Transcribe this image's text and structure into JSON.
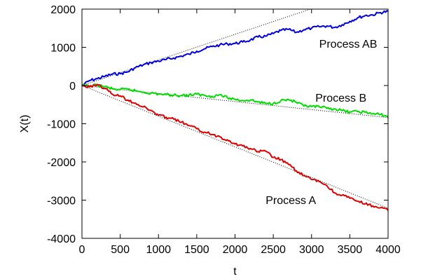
{
  "chart_data": {
    "type": "line",
    "title": "",
    "xlabel": "t",
    "ylabel": "X(t)",
    "xlim": [
      0,
      4000
    ],
    "ylim": [
      -4000,
      2000
    ],
    "xticks": [
      0,
      500,
      1000,
      1500,
      2000,
      2500,
      3000,
      3500,
      4000
    ],
    "yticks": [
      -4000,
      -3000,
      -2000,
      -1000,
      0,
      1000,
      2000
    ],
    "grid": false,
    "legend": "none",
    "series": [
      {
        "color": "#0000dd",
        "x": [
          0,
          100,
          200,
          300,
          400,
          500,
          600,
          700,
          800,
          900,
          1000,
          1100,
          1200,
          1300,
          1400,
          1500,
          1600,
          1700,
          1800,
          1900,
          2000,
          2100,
          2200,
          2300,
          2400,
          2500,
          2600,
          2700,
          2800,
          2900,
          3000,
          3100,
          3200,
          3300,
          3400,
          3500,
          3600,
          3700,
          3800,
          3900,
          4000
        ],
        "y": [
          0,
          130,
          180,
          240,
          300,
          310,
          360,
          470,
          540,
          600,
          640,
          680,
          720,
          770,
          820,
          900,
          960,
          1020,
          1060,
          1090,
          1100,
          1140,
          1190,
          1270,
          1290,
          1360,
          1440,
          1470,
          1390,
          1460,
          1500,
          1540,
          1560,
          1520,
          1590,
          1680,
          1770,
          1830,
          1850,
          1910,
          1940
        ]
      },
      {
        "color": "#00dd00",
        "x": [
          0,
          100,
          200,
          300,
          400,
          500,
          600,
          700,
          800,
          900,
          1000,
          1100,
          1200,
          1300,
          1400,
          1500,
          1600,
          1700,
          1800,
          1900,
          2000,
          2100,
          2200,
          2300,
          2400,
          2500,
          2600,
          2700,
          2800,
          2900,
          3000,
          3100,
          3200,
          3300,
          3400,
          3500,
          3600,
          3700,
          3800,
          3900,
          4000
        ],
        "y": [
          0,
          -20,
          10,
          -30,
          -90,
          -110,
          -100,
          -140,
          -170,
          -200,
          -220,
          -240,
          -250,
          -260,
          -250,
          -230,
          -260,
          -280,
          -240,
          -320,
          -360,
          -390,
          -380,
          -430,
          -470,
          -470,
          -390,
          -370,
          -440,
          -540,
          -550,
          -560,
          -600,
          -610,
          -660,
          -690,
          -680,
          -700,
          -740,
          -760,
          -810
        ]
      },
      {
        "color": "#dd0000",
        "x": [
          0,
          100,
          200,
          300,
          400,
          500,
          600,
          700,
          800,
          900,
          1000,
          1100,
          1200,
          1300,
          1400,
          1500,
          1600,
          1700,
          1800,
          1900,
          2000,
          2100,
          2200,
          2300,
          2400,
          2500,
          2600,
          2700,
          2800,
          2900,
          3000,
          3100,
          3200,
          3300,
          3400,
          3500,
          3600,
          3700,
          3800,
          3900,
          4000
        ],
        "y": [
          0,
          -40,
          30,
          -80,
          -230,
          -270,
          -380,
          -460,
          -560,
          -650,
          -780,
          -830,
          -880,
          -960,
          -1050,
          -1130,
          -1220,
          -1280,
          -1340,
          -1420,
          -1530,
          -1580,
          -1650,
          -1730,
          -1720,
          -1880,
          -1940,
          -2070,
          -2230,
          -2360,
          -2460,
          -2510,
          -2620,
          -2810,
          -2870,
          -2950,
          -3030,
          -3100,
          -3150,
          -3200,
          -3270
        ]
      }
    ],
    "reference_lines": [
      {
        "style": "dotted",
        "x": [
          0,
          4000
        ],
        "y": [
          0,
          2680
        ]
      },
      {
        "style": "dotted",
        "x": [
          0,
          4000
        ],
        "y": [
          0,
          -840
        ]
      },
      {
        "style": "dotted",
        "x": [
          0,
          4000
        ],
        "y": [
          0,
          -3210
        ]
      }
    ],
    "annotations": [
      {
        "text": "Process AB",
        "x": 3100,
        "y": 1100
      },
      {
        "text": "Process B",
        "x": 3050,
        "y": -310
      },
      {
        "text": "Process A",
        "x": 2400,
        "y": -2990
      }
    ]
  }
}
